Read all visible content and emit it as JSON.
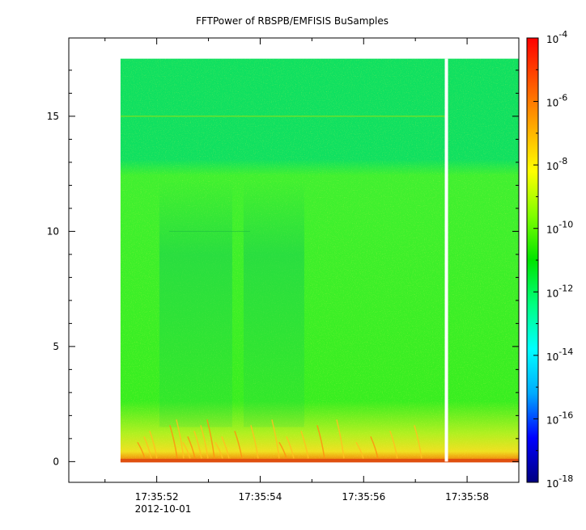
{
  "chart_data": {
    "type": "heatmap",
    "title": "FFTPower of RBSPB/EMFISIS  BuSamples",
    "xlabel": "",
    "ylabel": "",
    "x_ticks": [
      {
        "time": "17:35:52",
        "date": "2012-10-01"
      },
      {
        "time": "17:35:54",
        "date": ""
      },
      {
        "time": "17:35:56",
        "date": ""
      },
      {
        "time": "17:35:58",
        "date": ""
      }
    ],
    "x_range": [
      "17:35:50.3",
      "17:35:59.0"
    ],
    "data_x_range": [
      "17:35:51.3",
      "17:35:59.0"
    ],
    "data_gap_at": "17:35:57.6",
    "y_ticks": [
      0,
      5,
      10,
      15
    ],
    "ylim": [
      -0.9,
      18.4
    ],
    "data_ylim": [
      0,
      17.5
    ],
    "colorbar": {
      "scale": "log",
      "range": [
        1e-18,
        0.0001
      ],
      "tick_exponents": [
        -4,
        -6,
        -8,
        -10,
        -12,
        -14,
        -16,
        -18
      ],
      "tick_base": "10",
      "colormap": [
        "#00007f",
        "#0000ff",
        "#00aaff",
        "#00ffff",
        "#00ff80",
        "#00e400",
        "#80ff00",
        "#ffff00",
        "#ffaa00",
        "#ff5500",
        "#ff0000"
      ]
    },
    "grid": false
  }
}
